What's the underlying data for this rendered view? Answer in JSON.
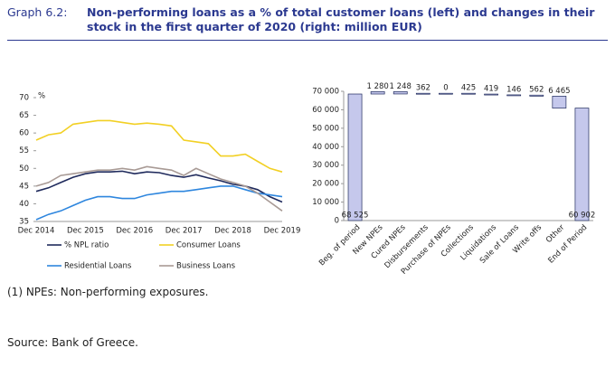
{
  "header": {
    "label": "Graph 6.2:",
    "title": "Non-performing loans as a % of total customer loans (left) and changes in their stock in the first quarter of 2020 (right: million EUR)"
  },
  "chart_data": [
    {
      "type": "line",
      "ylabel": "%",
      "categories": [
        "Dec 2014",
        null,
        null,
        null,
        "Dec 2015",
        null,
        null,
        null,
        "Dec 2016",
        null,
        null,
        null,
        "Dec 2017",
        null,
        null,
        null,
        "Dec 2018",
        null,
        null,
        null,
        "Dec 2019"
      ],
      "series": [
        {
          "name": "% NPL ratio",
          "color": "#1f2a5c",
          "values": [
            43.5,
            44.5,
            46,
            47.5,
            48.5,
            49,
            49,
            49.2,
            48.5,
            49,
            48.8,
            48,
            47.5,
            48.2,
            47.3,
            46.5,
            45.5,
            45,
            44,
            42,
            40.5
          ]
        },
        {
          "name": "Consumer Loans",
          "color": "#f2d024",
          "values": [
            58,
            59.5,
            60,
            62.5,
            63,
            63.5,
            63.5,
            63,
            62.5,
            62.8,
            62.5,
            62,
            58,
            57.5,
            57,
            53.5,
            53.5,
            54,
            52,
            50,
            49
          ]
        },
        {
          "name": "Residential Loans",
          "color": "#2e86de",
          "values": [
            35.5,
            37,
            38,
            39.5,
            41,
            42,
            42,
            41.5,
            41.5,
            42.5,
            43,
            43.5,
            43.5,
            44,
            44.5,
            45,
            45,
            44,
            43,
            42.5,
            42
          ]
        },
        {
          "name": "Business Loans",
          "color": "#a89a95",
          "values": [
            45,
            46,
            48,
            48.5,
            49,
            49.5,
            49.5,
            50,
            49.5,
            50.5,
            50,
            49.5,
            48,
            50,
            48.5,
            47,
            46,
            45,
            43,
            40.5,
            38
          ]
        }
      ],
      "ylim": [
        35,
        70
      ],
      "yticks": [
        35,
        40,
        45,
        50,
        55,
        60,
        65,
        70
      ],
      "legend": "bottom"
    },
    {
      "type": "waterfall",
      "categories": [
        "Beg. of period",
        "New NPEs",
        "Cured NPEs",
        "Disbursements",
        "Purchase of NPEs",
        "Collections",
        "Liquidations",
        "Sale of Loans",
        "Write offs",
        "Other",
        "End of Period"
      ],
      "values": [
        68525,
        1280,
        -1248,
        362,
        0,
        -425,
        -419,
        -146,
        -562,
        -6465,
        60902
      ],
      "value_labels": [
        "68 525",
        "1 280",
        "1 248",
        "362",
        "0",
        "425",
        "419",
        "146",
        "562",
        "6 465",
        "60 902"
      ],
      "color": "#c5c8ec",
      "edge_color": "#1f2a5c",
      "ylim": [
        0,
        70000
      ],
      "yticks": [
        0,
        {
          "value": 10000,
          "label": "10 000"
        },
        {
          "value": 20000,
          "label": "20 000"
        },
        {
          "value": 30000,
          "label": "30 000"
        },
        {
          "value": 40000,
          "label": "40 000"
        },
        {
          "value": 50000,
          "label": "50 000"
        },
        {
          "value": 60000,
          "label": "60 000"
        },
        {
          "value": 70000,
          "label": "70 000"
        }
      ]
    }
  ],
  "notes": {
    "footnote": "(1) NPEs: Non-performing exposures.",
    "source": "Source: Bank of Greece."
  }
}
